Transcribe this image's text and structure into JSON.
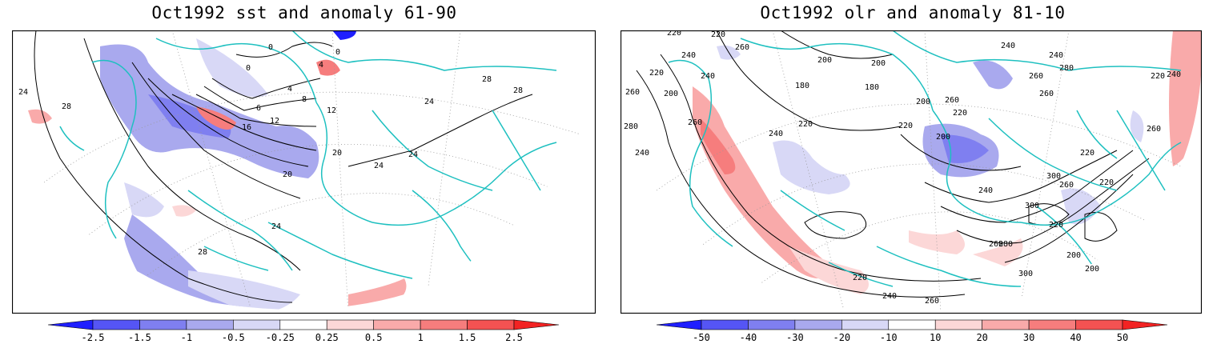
{
  "panels": [
    {
      "title": "Oct1992 sst and anomaly 61-90",
      "colorbar": {
        "ticks": [
          "-2.5",
          "-1.5",
          "-1",
          "-0.5",
          "-0.25",
          "0.25",
          "0.5",
          "1",
          "1.5",
          "2.5"
        ],
        "colors": [
          "#1f1fff",
          "#5555f5",
          "#7f7ff0",
          "#a9a9ee",
          "#d8d8f6",
          "#ffffff",
          "#fcd7d7",
          "#f9aaaa",
          "#f67d7d",
          "#f45252",
          "#f22323"
        ]
      },
      "contour_labels": [
        "24",
        "28",
        "0",
        "0",
        "4",
        "4",
        "8",
        "6",
        "12",
        "16",
        "20",
        "24",
        "28",
        "28",
        "20",
        "24",
        "24",
        "24",
        "28",
        "12",
        "0"
      ]
    },
    {
      "title": "Oct1992 olr and anomaly 81-10",
      "colorbar": {
        "ticks": [
          "-50",
          "-40",
          "-30",
          "-20",
          "-10",
          "10",
          "20",
          "30",
          "40",
          "50"
        ],
        "colors": [
          "#1f1fff",
          "#5555f5",
          "#7f7ff0",
          "#a9a9ee",
          "#d8d8f6",
          "#ffffff",
          "#fcd7d7",
          "#f9aaaa",
          "#f67d7d",
          "#f45252",
          "#f22323"
        ]
      },
      "contour_labels": [
        "220",
        "220",
        "240",
        "260",
        "260",
        "220",
        "240",
        "200",
        "200",
        "180",
        "200",
        "220",
        "240",
        "260",
        "280",
        "240",
        "200",
        "220",
        "200",
        "260",
        "220",
        "240",
        "240",
        "260",
        "260",
        "280",
        "300",
        "300",
        "260",
        "240",
        "220",
        "280",
        "300",
        "260",
        "220",
        "220",
        "220",
        "260",
        "240",
        "220",
        "240",
        "260",
        "200",
        "200",
        "180"
      ]
    }
  ]
}
